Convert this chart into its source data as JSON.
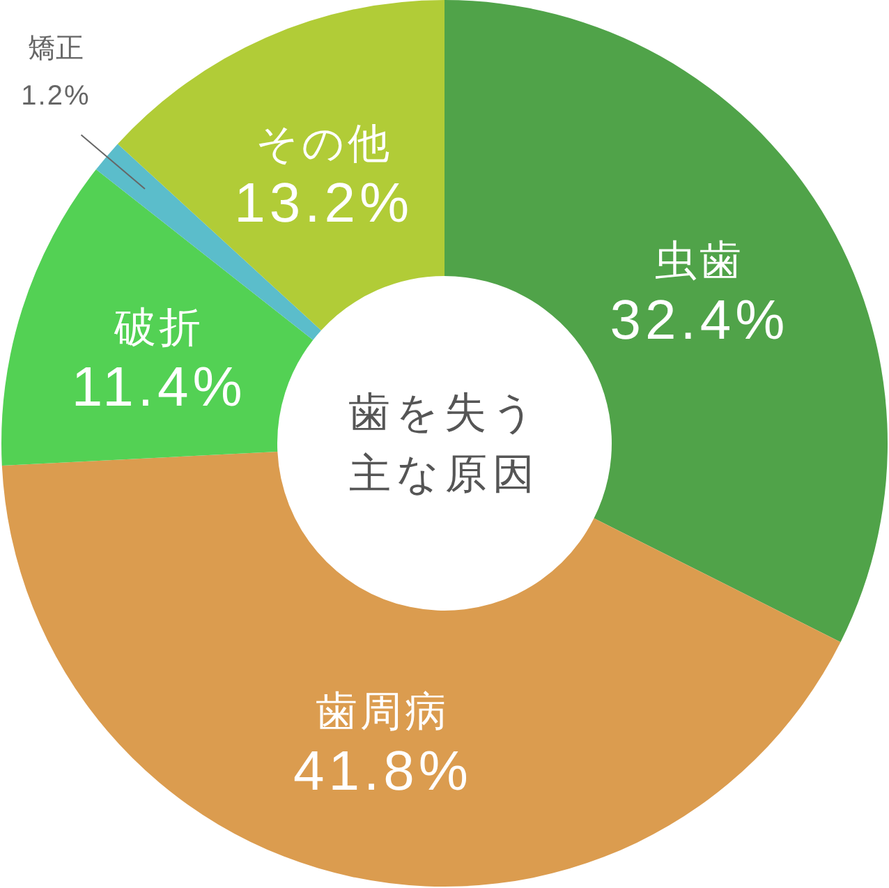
{
  "chart_data": {
    "type": "donut",
    "title": "歯を失う主な原因",
    "categories": [
      "虫歯",
      "歯周病",
      "破折",
      "矯正",
      "その他"
    ],
    "values": [
      32.4,
      41.8,
      11.4,
      1.2,
      13.2
    ],
    "value_labels": [
      "32.4%",
      "41.8%",
      "11.4%",
      "1.2%",
      "13.2%"
    ],
    "colors": [
      "#50a349",
      "#db9c4f",
      "#53d154",
      "#5bbdcb",
      "#b1cc37"
    ]
  }
}
